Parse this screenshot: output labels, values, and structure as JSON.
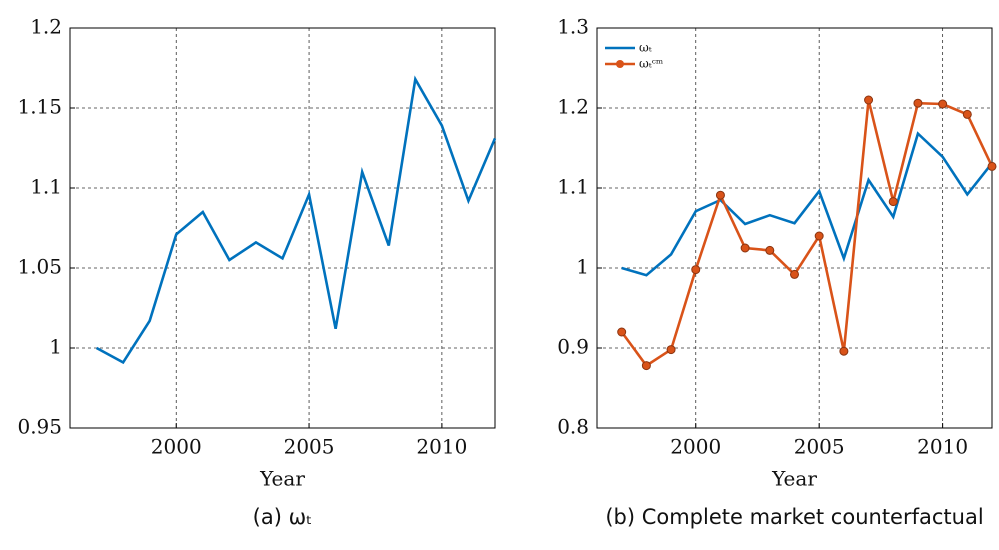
{
  "chart_data": [
    {
      "type": "line",
      "caption": "(a) ωₜ",
      "x_label": "Year",
      "x": [
        1997,
        1998,
        1999,
        2000,
        2001,
        2002,
        2003,
        2004,
        2005,
        2006,
        2007,
        2008,
        2009,
        2010,
        2011,
        2012
      ],
      "series": [
        {
          "name": "ωₜ",
          "color": "#0072bd",
          "markers": false,
          "values": [
            1.0,
            0.991,
            1.017,
            1.071,
            1.085,
            1.055,
            1.066,
            1.056,
            1.096,
            1.012,
            1.11,
            1.064,
            1.168,
            1.139,
            1.092,
            1.131
          ]
        }
      ],
      "xlim": [
        1996,
        2012
      ],
      "xticks": [
        2000,
        2005,
        2010
      ],
      "ylim": [
        0.95,
        1.2
      ],
      "yticks": [
        0.95,
        1,
        1.05,
        1.1,
        1.15,
        1.2
      ],
      "grid": true,
      "legend": false
    },
    {
      "type": "line",
      "caption": "(b) Complete market counterfactual",
      "x_label": "Year",
      "x": [
        1997,
        1998,
        1999,
        2000,
        2001,
        2002,
        2003,
        2004,
        2005,
        2006,
        2007,
        2008,
        2009,
        2010,
        2011,
        2012
      ],
      "series": [
        {
          "name": "ωₜ",
          "color": "#0072bd",
          "markers": false,
          "values": [
            1.0,
            0.991,
            1.017,
            1.071,
            1.085,
            1.055,
            1.066,
            1.056,
            1.096,
            1.012,
            1.11,
            1.064,
            1.168,
            1.139,
            1.092,
            1.131
          ]
        },
        {
          "name": "ωₜᶜᵐ",
          "color": "#d95319",
          "markers": true,
          "values": [
            0.92,
            0.878,
            0.898,
            0.998,
            1.091,
            1.025,
            1.022,
            0.992,
            1.04,
            0.896,
            1.21,
            1.083,
            1.206,
            1.205,
            1.192,
            1.127
          ]
        }
      ],
      "xlim": [
        1996,
        2012
      ],
      "xticks": [
        2000,
        2005,
        2010
      ],
      "ylim": [
        0.8,
        1.3
      ],
      "yticks": [
        0.8,
        0.9,
        1,
        1.1,
        1.2,
        1.3
      ],
      "grid": true,
      "legend": "upper left"
    }
  ]
}
